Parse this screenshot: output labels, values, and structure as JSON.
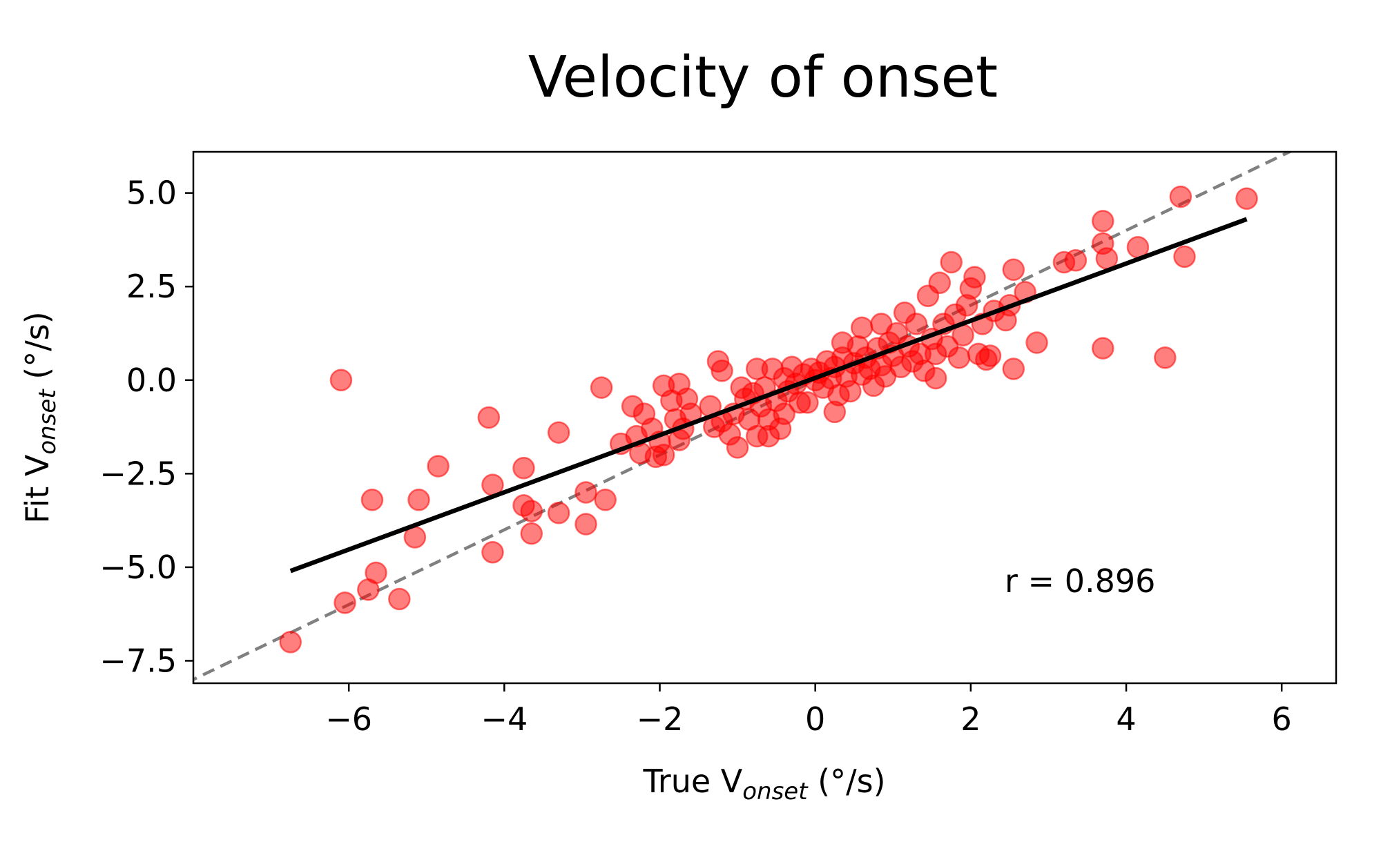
{
  "chart_data": {
    "type": "scatter",
    "title": "Velocity of onset",
    "xlabel": {
      "main": "True V",
      "sub": "onset",
      "unit": " (°/s)"
    },
    "ylabel": {
      "main": "Fit V",
      "sub": "onset",
      "unit": " (°/s)"
    },
    "xlim": [
      -8.0,
      6.7
    ],
    "ylim": [
      -8.1,
      6.1
    ],
    "xticks": [
      -6,
      -4,
      -2,
      0,
      2,
      4,
      6
    ],
    "xtick_labels": [
      "−6",
      "−4",
      "−2",
      "0",
      "2",
      "4",
      "6"
    ],
    "yticks": [
      5.0,
      2.5,
      0.0,
      -2.5,
      -5.0,
      -7.5
    ],
    "ytick_labels": [
      "5.0",
      "2.5",
      "0.0",
      "−2.5",
      "−5.0",
      "−7.5"
    ],
    "grid": false,
    "annotation": "r = 0.896",
    "identity_line": {
      "style": "dashed",
      "color": "#808080"
    },
    "fit_line": {
      "x": [
        -6.75,
        5.55
      ],
      "y": [
        -5.1,
        4.3
      ],
      "color": "#000000"
    },
    "point_color": "#ff0000",
    "points": [
      [
        -6.75,
        -7.0
      ],
      [
        -6.05,
        -5.95
      ],
      [
        -6.1,
        0.0
      ],
      [
        -5.75,
        -5.6
      ],
      [
        -5.65,
        -5.15
      ],
      [
        -5.7,
        -3.2
      ],
      [
        -5.35,
        -5.85
      ],
      [
        -5.15,
        -4.2
      ],
      [
        -5.1,
        -3.2
      ],
      [
        -4.85,
        -2.3
      ],
      [
        -4.2,
        -1.0
      ],
      [
        -4.15,
        -2.8
      ],
      [
        -4.15,
        -4.6
      ],
      [
        -3.75,
        -2.35
      ],
      [
        -3.75,
        -3.35
      ],
      [
        -3.65,
        -3.5
      ],
      [
        -3.65,
        -4.1
      ],
      [
        -3.3,
        -1.4
      ],
      [
        -3.3,
        -3.55
      ],
      [
        -2.95,
        -3.0
      ],
      [
        -2.95,
        -3.85
      ],
      [
        -2.75,
        -0.2
      ],
      [
        -2.7,
        -3.2
      ],
      [
        -2.5,
        -1.7
      ],
      [
        -2.35,
        -0.7
      ],
      [
        -2.3,
        -1.5
      ],
      [
        -2.25,
        -1.95
      ],
      [
        -2.2,
        -0.9
      ],
      [
        -2.1,
        -1.3
      ],
      [
        -2.05,
        -2.05
      ],
      [
        -2.0,
        -1.65
      ],
      [
        -1.95,
        -0.15
      ],
      [
        -1.95,
        -2.0
      ],
      [
        -1.85,
        -0.55
      ],
      [
        -1.8,
        -1.05
      ],
      [
        -1.75,
        -1.6
      ],
      [
        -1.75,
        -0.1
      ],
      [
        -1.7,
        -1.3
      ],
      [
        -1.65,
        -0.5
      ],
      [
        -1.6,
        -0.9
      ],
      [
        -1.35,
        -0.7
      ],
      [
        -1.3,
        -1.25
      ],
      [
        -1.25,
        0.5
      ],
      [
        -1.2,
        -1.1
      ],
      [
        -1.2,
        0.25
      ],
      [
        -1.1,
        -1.45
      ],
      [
        -1.05,
        -0.9
      ],
      [
        -1.0,
        -1.8
      ],
      [
        -0.95,
        -0.2
      ],
      [
        -0.9,
        -0.5
      ],
      [
        -0.85,
        -1.05
      ],
      [
        -0.8,
        -0.35
      ],
      [
        -0.75,
        -1.5
      ],
      [
        -0.75,
        0.3
      ],
      [
        -0.7,
        -0.7
      ],
      [
        -0.65,
        -0.2
      ],
      [
        -0.6,
        -1.05
      ],
      [
        -0.6,
        -1.5
      ],
      [
        -0.55,
        0.3
      ],
      [
        -0.5,
        -0.55
      ],
      [
        -0.45,
        -1.3
      ],
      [
        -0.4,
        -0.9
      ],
      [
        -0.4,
        0.05
      ],
      [
        -0.35,
        -0.3
      ],
      [
        -0.3,
        0.35
      ],
      [
        -0.25,
        -0.1
      ],
      [
        -0.2,
        -0.6
      ],
      [
        -0.15,
        0.15
      ],
      [
        -0.1,
        -0.6
      ],
      [
        -0.05,
        0.3
      ],
      [
        0.0,
        0.0
      ],
      [
        0.05,
        0.2
      ],
      [
        0.1,
        -0.2
      ],
      [
        0.15,
        0.5
      ],
      [
        0.2,
        0.05
      ],
      [
        0.25,
        0.35
      ],
      [
        0.25,
        -0.85
      ],
      [
        0.3,
        -0.4
      ],
      [
        0.35,
        0.6
      ],
      [
        0.35,
        1.0
      ],
      [
        0.4,
        0.1
      ],
      [
        0.45,
        -0.3
      ],
      [
        0.5,
        0.45
      ],
      [
        0.55,
        0.9
      ],
      [
        0.6,
        0.15
      ],
      [
        0.6,
        1.4
      ],
      [
        0.65,
        0.6
      ],
      [
        0.7,
        0.3
      ],
      [
        0.75,
        -0.15
      ],
      [
        0.8,
        0.85
      ],
      [
        0.85,
        1.5
      ],
      [
        0.85,
        0.4
      ],
      [
        0.9,
        0.1
      ],
      [
        0.95,
        1.0
      ],
      [
        1.0,
        0.65
      ],
      [
        1.05,
        1.25
      ],
      [
        1.1,
        0.35
      ],
      [
        1.15,
        1.8
      ],
      [
        1.2,
        0.9
      ],
      [
        1.25,
        0.5
      ],
      [
        1.3,
        1.5
      ],
      [
        1.35,
        0.7
      ],
      [
        1.4,
        0.25
      ],
      [
        1.45,
        2.25
      ],
      [
        1.5,
        1.1
      ],
      [
        1.55,
        0.05
      ],
      [
        1.55,
        0.7
      ],
      [
        1.6,
        2.6
      ],
      [
        1.65,
        1.5
      ],
      [
        1.7,
        0.9
      ],
      [
        1.75,
        3.15
      ],
      [
        1.8,
        1.75
      ],
      [
        1.85,
        0.6
      ],
      [
        1.9,
        1.2
      ],
      [
        1.95,
        2.0
      ],
      [
        2.0,
        2.45
      ],
      [
        2.05,
        2.75
      ],
      [
        2.1,
        0.7
      ],
      [
        2.15,
        1.5
      ],
      [
        2.2,
        0.55
      ],
      [
        2.25,
        0.65
      ],
      [
        2.3,
        1.85
      ],
      [
        2.45,
        1.6
      ],
      [
        2.5,
        2.0
      ],
      [
        2.55,
        0.3
      ],
      [
        2.55,
        2.95
      ],
      [
        2.7,
        2.35
      ],
      [
        2.85,
        1.0
      ],
      [
        3.2,
        3.15
      ],
      [
        3.35,
        3.2
      ],
      [
        3.7,
        0.85
      ],
      [
        3.7,
        4.25
      ],
      [
        3.7,
        3.65
      ],
      [
        3.75,
        3.25
      ],
      [
        4.15,
        3.55
      ],
      [
        4.5,
        0.6
      ],
      [
        4.7,
        4.9
      ],
      [
        4.75,
        3.3
      ],
      [
        5.55,
        4.85
      ]
    ]
  }
}
